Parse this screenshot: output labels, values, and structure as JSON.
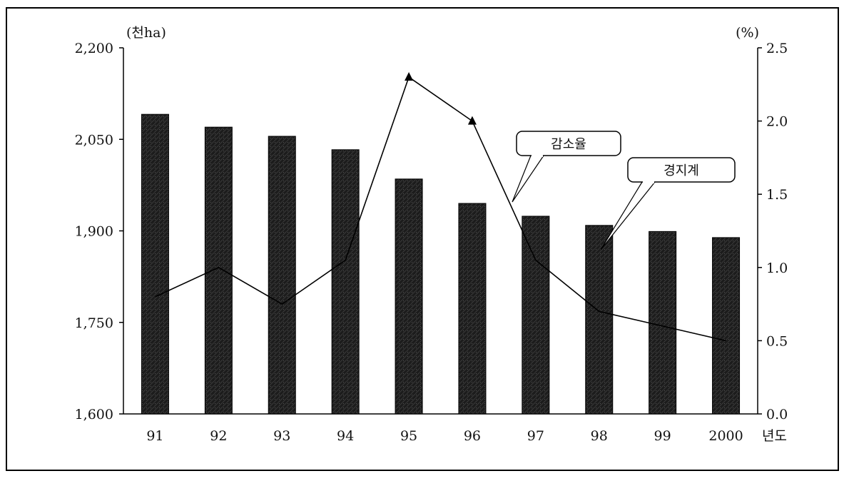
{
  "chart_data": {
    "type": "bar",
    "title": "",
    "categories": [
      "91",
      "92",
      "93",
      "94",
      "95",
      "96",
      "97",
      "98",
      "99",
      "2000"
    ],
    "x_suffix": "년도",
    "y_left": {
      "unit_label": "(천ha)",
      "range": [
        1600,
        2200
      ],
      "ticks": [
        1600,
        1750,
        1900,
        2050,
        2200
      ],
      "tick_labels": [
        "1,600",
        "1,750",
        "1,900",
        "2,050",
        "2,200"
      ]
    },
    "y_right": {
      "unit_label": "(%)",
      "range": [
        0,
        2.5
      ],
      "ticks": [
        0,
        0.5,
        1,
        1.5,
        2,
        2.5
      ],
      "tick_labels": [
        "0.0",
        "0.5",
        "1.0",
        "1.5",
        "2.0",
        "2.5"
      ]
    },
    "series": [
      {
        "name": "경지계",
        "type": "bar",
        "axis": "left",
        "color": "#1a1a1a",
        "values": [
          2091,
          2070,
          2055,
          2033,
          1985,
          1945,
          1924,
          1909,
          1899,
          1889
        ]
      },
      {
        "name": "감소율",
        "type": "line",
        "axis": "right",
        "color": "#000000",
        "values": [
          0.8,
          1.0,
          0.75,
          1.05,
          2.3,
          2.0,
          1.05,
          0.7,
          0.6,
          0.5
        ]
      }
    ],
    "callouts": [
      {
        "label": "감소율",
        "series": "감소율"
      },
      {
        "label": "경지계",
        "series": "경지계"
      }
    ],
    "grid": false,
    "legend": "none"
  }
}
